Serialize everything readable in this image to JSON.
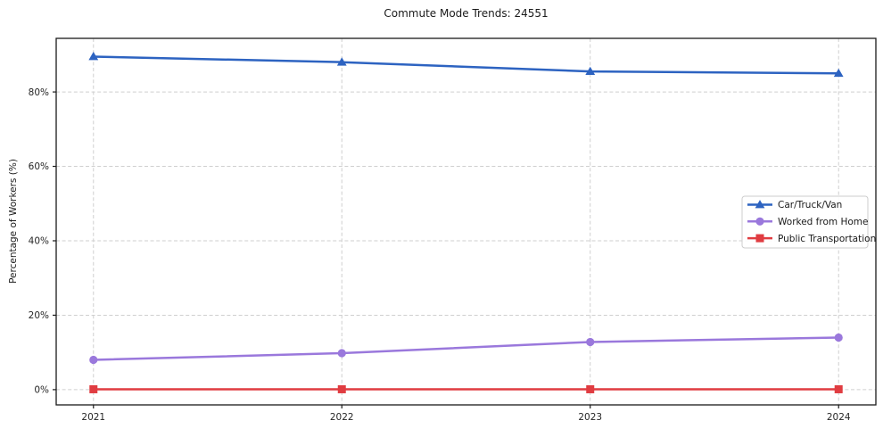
{
  "chart_data": {
    "type": "line",
    "title": "Commute Mode Trends: 24551",
    "ylabel": "Percentage of Workers (%)",
    "xlabel": "",
    "x": [
      2021,
      2022,
      2023,
      2024
    ],
    "series": [
      {
        "name": "Car/Truck/Van",
        "values": [
          89.5,
          88.0,
          85.5,
          85.0
        ],
        "color": "#2d63c1",
        "marker": "triangle"
      },
      {
        "name": "Worked from Home",
        "values": [
          8.0,
          9.8,
          12.8,
          14.0
        ],
        "color": "#9a78dc",
        "marker": "circle"
      },
      {
        "name": "Public Transportation",
        "values": [
          0.1,
          0.1,
          0.1,
          0.1
        ],
        "color": "#e03c41",
        "marker": "square"
      }
    ],
    "yticks": [
      0,
      20,
      40,
      60,
      80
    ],
    "ytick_labels": [
      "0%",
      "20%",
      "40%",
      "60%",
      "80%"
    ],
    "xtick_labels": [
      "2021",
      "2022",
      "2023",
      "2024"
    ],
    "ylim": [
      -4.1,
      94.4
    ],
    "xlim": [
      2020.85,
      2024.15
    ],
    "grid": "dashed",
    "grid_color": "#cfcfcf",
    "axis_color": "#1a1a1a",
    "tick_label_color": "#262626",
    "legend_position": "center-right",
    "legend_border_color": "#cccccc",
    "background_color": "#ffffff"
  }
}
